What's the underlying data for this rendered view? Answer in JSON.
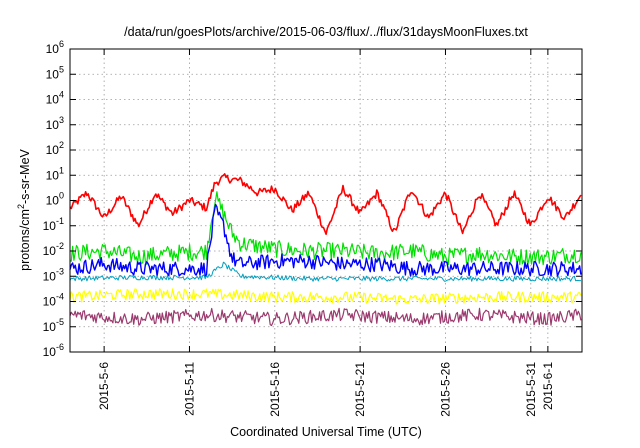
{
  "chart_data": {
    "type": "line",
    "title": "/data/run/goesPlots/archive/2015-06-03/flux/../flux/31daysMoonFluxes.txt",
    "xlabel": "Coordinated Universal Time (UTC)",
    "ylabel": {
      "base": "protons/cm",
      "exp": "2",
      "rest": "-s-sr-MeV"
    },
    "x_range": [
      "2015-05-04",
      "2015-06-03"
    ],
    "y_scale": "log",
    "ylim": [
      1e-06,
      1000000.0
    ],
    "grid": true,
    "legend": "none",
    "x_ticks": [
      "2015-5-6",
      "2015-5-11",
      "2015-5-16",
      "2015-5-21",
      "2015-5-26",
      "2015-5-31",
      "2015-6-1"
    ],
    "x_tick_dates": [
      "2015-05-06",
      "2015-05-11",
      "2015-05-16",
      "2015-05-21",
      "2015-05-26",
      "2015-05-31",
      "2015-06-01"
    ],
    "y_ticks": [
      {
        "value": 1e-06,
        "base": "10",
        "exp": "-6"
      },
      {
        "value": 1e-05,
        "base": "10",
        "exp": "-5"
      },
      {
        "value": 0.0001,
        "base": "10",
        "exp": "-4"
      },
      {
        "value": 0.001,
        "base": "10",
        "exp": "-3"
      },
      {
        "value": 0.01,
        "base": "10",
        "exp": "-2"
      },
      {
        "value": 0.1,
        "base": "10",
        "exp": "-1"
      },
      {
        "value": 1.0,
        "base": "10",
        "exp": "0"
      },
      {
        "value": 10.0,
        "base": "10",
        "exp": "1"
      },
      {
        "value": 100.0,
        "base": "10",
        "exp": "2"
      },
      {
        "value": 1000.0,
        "base": "10",
        "exp": "3"
      },
      {
        "value": 10000.0,
        "base": "10",
        "exp": "4"
      },
      {
        "value": 100000.0,
        "base": "10",
        "exp": "5"
      },
      {
        "value": 1000000.0,
        "base": "10",
        "exp": "6"
      }
    ],
    "series": [
      {
        "color": "#ff0000",
        "stroke": 1.6,
        "x": [
          "2015-05-04",
          "2015-05-05",
          "2015-05-06",
          "2015-05-07",
          "2015-05-08",
          "2015-05-09",
          "2015-05-10",
          "2015-05-11",
          "2015-05-12",
          "2015-05-12T12:00",
          "2015-05-13",
          "2015-05-14",
          "2015-05-15",
          "2015-05-16",
          "2015-05-17",
          "2015-05-18",
          "2015-05-19",
          "2015-05-20",
          "2015-05-21",
          "2015-05-22",
          "2015-05-23",
          "2015-05-24",
          "2015-05-25",
          "2015-05-26",
          "2015-05-27",
          "2015-05-28",
          "2015-05-29",
          "2015-05-30",
          "2015-05-31",
          "2015-06-01",
          "2015-06-02",
          "2015-06-03"
        ],
        "y": [
          0.5,
          2,
          0.2,
          1.5,
          0.1,
          2,
          0.3,
          1,
          0.5,
          5,
          8,
          6,
          2,
          3,
          0.4,
          2,
          0.05,
          3,
          0.3,
          2,
          0.05,
          3,
          0.2,
          2,
          0.05,
          2,
          0.1,
          2,
          0.1,
          1.5,
          0.2,
          2
        ]
      },
      {
        "color": "#00e000",
        "stroke": 1.2,
        "x": [
          "2015-05-04",
          "2015-05-06",
          "2015-05-08",
          "2015-05-10",
          "2015-05-12",
          "2015-05-12T12:00",
          "2015-05-13",
          "2015-05-13T12:00",
          "2015-05-14",
          "2015-05-16",
          "2015-05-18",
          "2015-05-20",
          "2015-05-22",
          "2015-05-24",
          "2015-05-26",
          "2015-05-28",
          "2015-05-30",
          "2015-06-01",
          "2015-06-03"
        ],
        "y": [
          0.008,
          0.01,
          0.006,
          0.008,
          0.01,
          1.5,
          0.3,
          0.05,
          0.02,
          0.012,
          0.01,
          0.01,
          0.008,
          0.01,
          0.006,
          0.008,
          0.006,
          0.006,
          0.008
        ]
      },
      {
        "color": "#0000ff",
        "stroke": 1.4,
        "x": [
          "2015-05-04",
          "2015-05-06",
          "2015-05-08",
          "2015-05-10",
          "2015-05-12",
          "2015-05-12T12:00",
          "2015-05-13",
          "2015-05-13T12:00",
          "2015-05-14",
          "2015-05-16",
          "2015-05-18",
          "2015-05-20",
          "2015-05-22",
          "2015-05-24",
          "2015-05-26",
          "2015-05-28",
          "2015-05-30",
          "2015-06-01",
          "2015-06-03"
        ],
        "y": [
          0.002,
          0.003,
          0.002,
          0.002,
          0.002,
          0.4,
          0.1,
          0.005,
          0.003,
          0.004,
          0.004,
          0.003,
          0.003,
          0.002,
          0.002,
          0.002,
          0.002,
          0.002,
          0.002
        ]
      },
      {
        "color": "#00a0c0",
        "stroke": 1.0,
        "x": [
          "2015-05-04",
          "2015-05-08",
          "2015-05-12",
          "2015-05-13",
          "2015-05-14",
          "2015-05-18",
          "2015-05-22",
          "2015-05-26",
          "2015-05-30",
          "2015-06-03"
        ],
        "y": [
          0.0008,
          0.0009,
          0.0009,
          0.003,
          0.001,
          0.0008,
          0.0008,
          0.0008,
          0.0008,
          0.0008
        ]
      },
      {
        "color": "#ffff00",
        "stroke": 1.2,
        "x": [
          "2015-05-04",
          "2015-05-08",
          "2015-05-12",
          "2015-05-16",
          "2015-05-20",
          "2015-05-24",
          "2015-05-28",
          "2015-06-01",
          "2015-06-03"
        ],
        "y": [
          0.00015,
          0.0002,
          0.0002,
          0.00015,
          0.00015,
          0.00012,
          0.00015,
          0.00015,
          0.00015
        ]
      },
      {
        "color": "#9b3a6e",
        "stroke": 1.2,
        "x": [
          "2015-05-04",
          "2015-05-08",
          "2015-05-12",
          "2015-05-16",
          "2015-05-20",
          "2015-05-24",
          "2015-05-28",
          "2015-06-01",
          "2015-06-03"
        ],
        "y": [
          3e-05,
          2e-05,
          3e-05,
          2e-05,
          3e-05,
          2e-05,
          3e-05,
          2e-05,
          3e-05
        ]
      }
    ]
  }
}
